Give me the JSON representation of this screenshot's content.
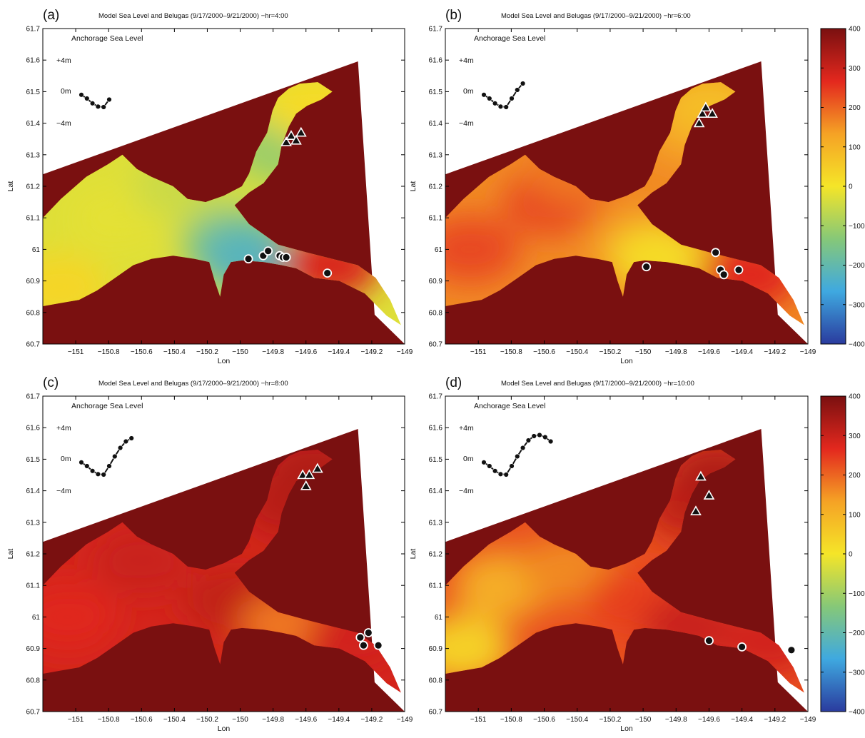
{
  "chart_data": {
    "type": "heatmap",
    "colorscale": [
      "#2a3b9e",
      "#3fa9e0",
      "#86c878",
      "#f5e528",
      "#f5a225",
      "#e3281e",
      "#7a1010"
    ],
    "colorbar": {
      "min": -400,
      "max": 400,
      "ticks": [
        "400",
        "300",
        "200",
        "100",
        "0",
        "-100",
        "-200",
        "-300",
        "-400"
      ]
    },
    "land_color": "#7a1010",
    "x_ticks": [
      "-151",
      "-150.8",
      "-150.6",
      "-150.4",
      "-150.2",
      "-150",
      "-149.8",
      "-149.6",
      "-149.4",
      "-149.2",
      "-149"
    ],
    "y_ticks": [
      "61.7",
      "61.6",
      "61.5",
      "61.4",
      "61.3",
      "61.2",
      "61.1",
      "61",
      "60.9",
      "60.8",
      "60.7"
    ],
    "xlim": [
      -151.2,
      -149
    ],
    "ylim": [
      60.7,
      61.7
    ],
    "xlabel": "Lon",
    "ylabel": "Lat",
    "inset": {
      "title": "Anchorage Sea Level",
      "label_top": "+4m",
      "label_mid": "0m",
      "label_bot": "−4m"
    },
    "panels": [
      {
        "letter": "(a)",
        "title": "Model Sea Level and Belugas (9/17/2000–9/21/2000) −hr=4:00",
        "inset_curve": [
          0.55,
          0.2,
          -0.25,
          -0.55,
          -0.6,
          0.1
        ],
        "zones": [
          {
            "lon": -151.1,
            "lat": 60.88,
            "value": 30
          },
          {
            "lon": -150.75,
            "lat": 61.1,
            "value": -20
          },
          {
            "lon": -150.35,
            "lat": 61.2,
            "value": -50
          },
          {
            "lon": -150.05,
            "lat": 61.02,
            "value": -150
          },
          {
            "lon": -149.95,
            "lat": 60.97,
            "value": -220
          },
          {
            "lon": -149.75,
            "lat": 61.32,
            "value": -110
          },
          {
            "lon": -149.55,
            "lat": 61.45,
            "value": 20
          },
          {
            "lon": -149.45,
            "lat": 60.95,
            "value": 280
          }
        ],
        "triangles": [
          [
            -149.72,
            61.34
          ],
          [
            -149.69,
            61.36
          ],
          [
            -149.66,
            61.345
          ],
          [
            -149.63,
            61.37
          ]
        ],
        "circles": [
          [
            -149.95,
            60.97
          ],
          [
            -149.86,
            60.98
          ],
          [
            -149.83,
            60.995
          ],
          [
            -149.76,
            60.98
          ],
          [
            -149.74,
            60.975
          ],
          [
            -149.72,
            60.975
          ],
          [
            -149.47,
            60.925
          ]
        ]
      },
      {
        "letter": "(b)",
        "title": "Model Sea Level and Belugas (9/17/2000–9/21/2000) −hr=6:00",
        "inset_curve": [
          0.55,
          0.2,
          -0.25,
          -0.55,
          -0.6,
          0.2,
          1.0,
          1.6
        ],
        "zones": [
          {
            "lon": -151.05,
            "lat": 61.0,
            "value": 230
          },
          {
            "lon": -150.55,
            "lat": 61.15,
            "value": 230
          },
          {
            "lon": -150.4,
            "lat": 61.25,
            "value": 180
          },
          {
            "lon": -150.05,
            "lat": 61.02,
            "value": 140
          },
          {
            "lon": -149.9,
            "lat": 60.97,
            "value": 20
          },
          {
            "lon": -149.7,
            "lat": 61.38,
            "value": 130
          },
          {
            "lon": -149.6,
            "lat": 61.46,
            "value": 80
          },
          {
            "lon": -149.35,
            "lat": 60.92,
            "value": 270
          }
        ],
        "triangles": [
          [
            -149.66,
            61.4
          ],
          [
            -149.64,
            61.43
          ],
          [
            -149.62,
            61.45
          ],
          [
            -149.58,
            61.43
          ]
        ],
        "circles": [
          [
            -149.98,
            60.945
          ],
          [
            -149.56,
            60.99
          ],
          [
            -149.53,
            60.935
          ],
          [
            -149.51,
            60.92
          ],
          [
            -149.42,
            60.935
          ]
        ]
      },
      {
        "letter": "(c)",
        "title": "Model Sea Level and Belugas (9/17/2000–9/21/2000) −hr=8:00",
        "inset_curve": [
          0.55,
          0.2,
          -0.25,
          -0.55,
          -0.6,
          0.2,
          1.1,
          1.9,
          2.5,
          2.8
        ],
        "zones": [
          {
            "lon": -151.05,
            "lat": 61.0,
            "value": 270
          },
          {
            "lon": -150.6,
            "lat": 61.18,
            "value": 300
          },
          {
            "lon": -150.05,
            "lat": 61.05,
            "value": 310
          },
          {
            "lon": -149.7,
            "lat": 60.97,
            "value": 180
          },
          {
            "lon": -149.7,
            "lat": 61.36,
            "value": 320
          },
          {
            "lon": -149.55,
            "lat": 61.46,
            "value": 330
          },
          {
            "lon": -149.3,
            "lat": 60.93,
            "value": 290
          }
        ],
        "triangles": [
          [
            -149.62,
            61.45
          ],
          [
            -149.58,
            61.45
          ],
          [
            -149.53,
            61.47
          ],
          [
            -149.6,
            61.415
          ]
        ],
        "circles": [
          [
            -149.27,
            60.935
          ],
          [
            -149.22,
            60.95
          ],
          [
            -149.25,
            60.91
          ],
          [
            -149.16,
            60.91
          ]
        ]
      },
      {
        "letter": "(d)",
        "title": "Model Sea Level and Belugas (9/17/2000–9/21/2000) −hr=10:00",
        "inset_curve": [
          0.55,
          0.2,
          -0.25,
          -0.55,
          -0.6,
          0.2,
          1.1,
          1.9,
          2.6,
          3.0,
          3.1,
          2.9,
          2.5
        ],
        "zones": [
          {
            "lon": -151.1,
            "lat": 60.9,
            "value": 40
          },
          {
            "lon": -150.85,
            "lat": 61.1,
            "value": 110
          },
          {
            "lon": -150.45,
            "lat": 61.15,
            "value": 160
          },
          {
            "lon": -150.05,
            "lat": 61.05,
            "value": 240
          },
          {
            "lon": -149.7,
            "lat": 60.97,
            "value": 300
          },
          {
            "lon": -149.7,
            "lat": 61.35,
            "value": 310
          },
          {
            "lon": -149.55,
            "lat": 61.45,
            "value": 330
          },
          {
            "lon": -149.25,
            "lat": 60.92,
            "value": 290
          }
        ],
        "triangles": [
          [
            -149.65,
            61.445
          ],
          [
            -149.6,
            61.385
          ],
          [
            -149.68,
            61.335
          ]
        ],
        "circles": [
          [
            -149.6,
            60.925
          ],
          [
            -149.4,
            60.905
          ],
          [
            -149.1,
            60.895
          ]
        ]
      }
    ]
  }
}
